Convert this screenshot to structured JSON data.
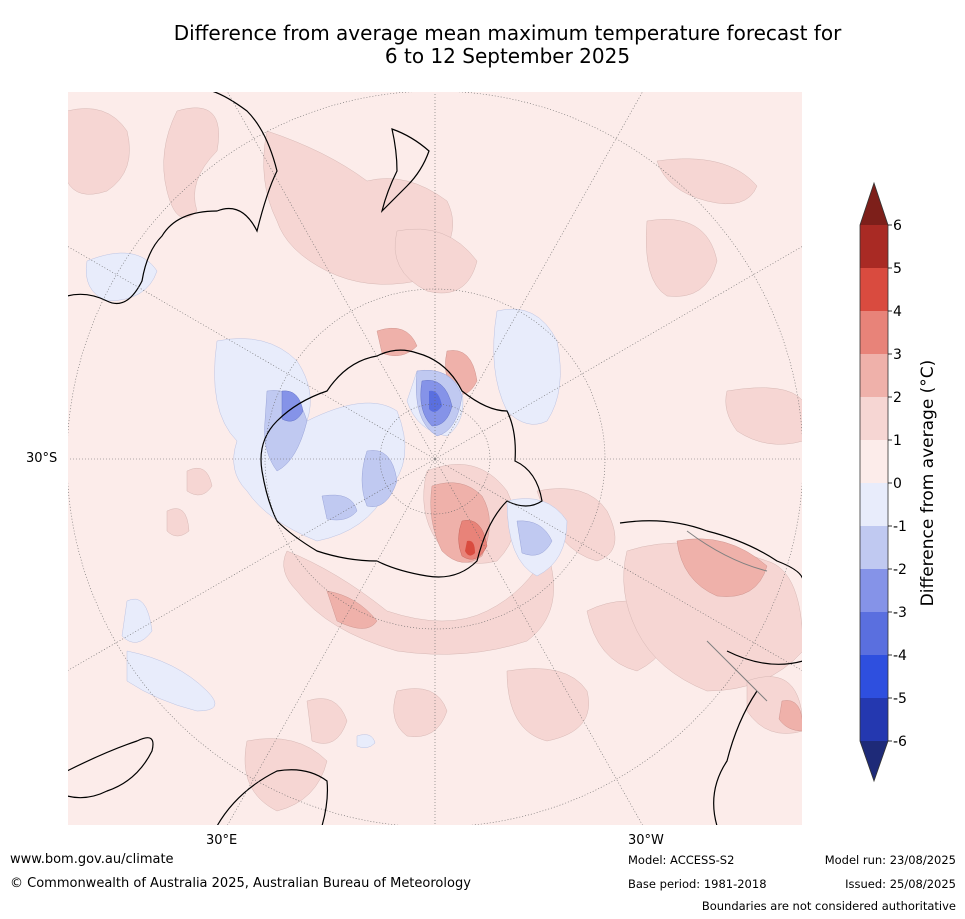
{
  "title": {
    "line1": "Difference from average mean maximum temperature forecast for",
    "line2": "6 to 12 September 2025"
  },
  "map": {
    "projection": "south-polar-stereographic",
    "lat_labels": [
      "30°S"
    ],
    "lon_labels": [
      "30°E",
      "30°W"
    ]
  },
  "colorbar": {
    "title": "Difference from average (°C)",
    "ticks": [
      "6",
      "5",
      "4",
      "3",
      "2",
      "1",
      "0",
      "-1",
      "-2",
      "-3",
      "-4",
      "-5",
      "-6"
    ],
    "colors": [
      "#7d1f1a",
      "#a92a24",
      "#d94b3f",
      "#e88379",
      "#efb1aa",
      "#f6d6d3",
      "#fcecea",
      "#e8ecfb",
      "#c0c9f1",
      "#8593e8",
      "#5a6fdf",
      "#2e4fdf",
      "#2438b0",
      "#1e2a78"
    ]
  },
  "footer": {
    "website": "www.bom.gov.au/climate",
    "copyright": "© Commonwealth of Australia 2025, Australian Bureau of Meteorology",
    "model": "Model: ACCESS-S2",
    "base_period": "Base period: 1981-2018",
    "model_run": "Model run: 23/08/2025",
    "issued": "Issued: 25/08/2025",
    "disclaimer": "Boundaries are not considered authoritative"
  }
}
